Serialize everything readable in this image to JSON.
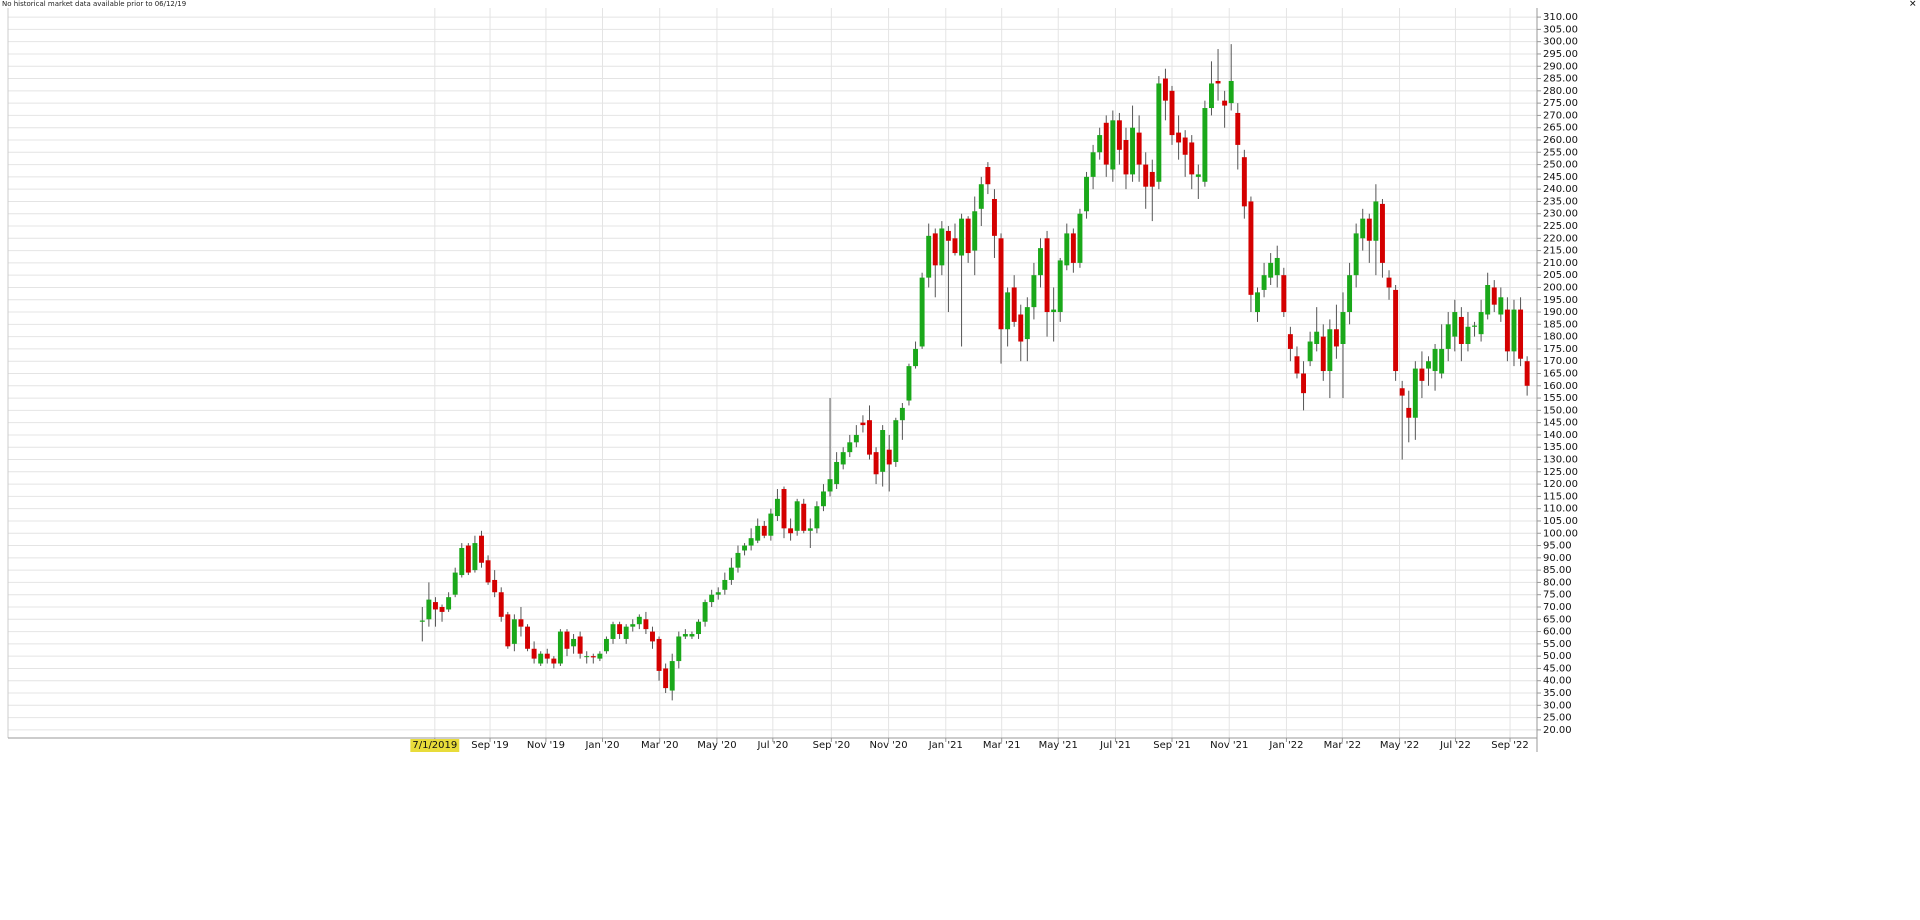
{
  "chart_data": {
    "type": "candlestick",
    "annotation": "No historical market data available prior to 06/12/19",
    "up_color": "#1aa81a",
    "down_color": "#d40000",
    "grid": true,
    "xlim": [
      -63,
      169.5
    ],
    "ylim": [
      16.7,
      313.7
    ],
    "xticks": [
      {
        "value": 1.9,
        "label": "7/1/2019"
      },
      {
        "value": 10.3,
        "label": "Sep '19"
      },
      {
        "value": 18.8,
        "label": "Nov '19"
      },
      {
        "value": 27.4,
        "label": "Jan '20"
      },
      {
        "value": 36.1,
        "label": "Mar '20"
      },
      {
        "value": 44.8,
        "label": "May '20"
      },
      {
        "value": 53.3,
        "label": "Jul '20"
      },
      {
        "value": 62.2,
        "label": "Sep '20"
      },
      {
        "value": 70.9,
        "label": "Nov '20"
      },
      {
        "value": 79.6,
        "label": "Jan '21"
      },
      {
        "value": 88.1,
        "label": "Mar '21"
      },
      {
        "value": 96.7,
        "label": "May '21"
      },
      {
        "value": 105.4,
        "label": "Jul '21"
      },
      {
        "value": 114.0,
        "label": "Sep '21"
      },
      {
        "value": 122.7,
        "label": "Nov '21"
      },
      {
        "value": 131.4,
        "label": "Jan '22"
      },
      {
        "value": 139.9,
        "label": "Mar '22"
      },
      {
        "value": 148.6,
        "label": "May '22"
      },
      {
        "value": 157.1,
        "label": "Jul '22"
      },
      {
        "value": 165.4,
        "label": "Sep '22"
      }
    ],
    "yticks": [
      {
        "value": 20,
        "label": "20.00"
      },
      {
        "value": 25,
        "label": "25.00"
      },
      {
        "value": 30,
        "label": "30.00"
      },
      {
        "value": 35,
        "label": "35.00"
      },
      {
        "value": 40,
        "label": "40.00"
      },
      {
        "value": 45,
        "label": "45.00"
      },
      {
        "value": 50,
        "label": "50.00"
      },
      {
        "value": 55,
        "label": "55.00"
      },
      {
        "value": 60,
        "label": "60.00"
      },
      {
        "value": 65,
        "label": "65.00"
      },
      {
        "value": 70,
        "label": "70.00"
      },
      {
        "value": 75,
        "label": "75.00"
      },
      {
        "value": 80,
        "label": "80.00"
      },
      {
        "value": 85,
        "label": "85.00"
      },
      {
        "value": 90,
        "label": "90.00"
      },
      {
        "value": 95,
        "label": "95.00"
      },
      {
        "value": 100,
        "label": "100.00"
      },
      {
        "value": 105,
        "label": "105.00"
      },
      {
        "value": 110,
        "label": "110.00"
      },
      {
        "value": 115,
        "label": "115.00"
      },
      {
        "value": 120,
        "label": "120.00"
      },
      {
        "value": 125,
        "label": "125.00"
      },
      {
        "value": 130,
        "label": "130.00"
      },
      {
        "value": 135,
        "label": "135.00"
      },
      {
        "value": 140,
        "label": "140.00"
      },
      {
        "value": 145,
        "label": "145.00"
      },
      {
        "value": 150,
        "label": "150.00"
      },
      {
        "value": 155,
        "label": "155.00"
      },
      {
        "value": 160,
        "label": "160.00"
      },
      {
        "value": 165,
        "label": "165.00"
      },
      {
        "value": 170,
        "label": "170.00"
      },
      {
        "value": 175,
        "label": "175.00"
      },
      {
        "value": 180,
        "label": "180.00"
      },
      {
        "value": 185,
        "label": "185.00"
      },
      {
        "value": 190,
        "label": "190.00"
      },
      {
        "value": 195,
        "label": "195.00"
      },
      {
        "value": 200,
        "label": "200.00"
      },
      {
        "value": 205,
        "label": "205.00"
      },
      {
        "value": 210,
        "label": "210.00"
      },
      {
        "value": 215,
        "label": "215.00"
      },
      {
        "value": 220,
        "label": "220.00"
      },
      {
        "value": 225,
        "label": "225.00"
      },
      {
        "value": 230,
        "label": "230.00"
      },
      {
        "value": 235,
        "label": "235.00"
      },
      {
        "value": 240,
        "label": "240.00"
      },
      {
        "value": 245,
        "label": "245.00"
      },
      {
        "value": 250,
        "label": "250.00"
      },
      {
        "value": 255,
        "label": "255.00"
      },
      {
        "value": 260,
        "label": "260.00"
      },
      {
        "value": 265,
        "label": "265.00"
      },
      {
        "value": 270,
        "label": "270.00"
      },
      {
        "value": 275,
        "label": "275.00"
      },
      {
        "value": 280,
        "label": "280.00"
      },
      {
        "value": 285,
        "label": "285.00"
      },
      {
        "value": 290,
        "label": "290.00"
      },
      {
        "value": 295,
        "label": "295.00"
      },
      {
        "value": 300,
        "label": "300.00"
      },
      {
        "value": 305,
        "label": "305.00"
      },
      {
        "value": 310,
        "label": "310.00"
      }
    ],
    "open": [
      64,
      65,
      72,
      70,
      69,
      75,
      83,
      95,
      85,
      99,
      89,
      81,
      76,
      67,
      55,
      65,
      62,
      53,
      47,
      51,
      49,
      47,
      60,
      54,
      58,
      50,
      50,
      49,
      52,
      57,
      63,
      57,
      62,
      63,
      65,
      60,
      57,
      45,
      36,
      48,
      58,
      58,
      59,
      64,
      72,
      75,
      77,
      81,
      86,
      93,
      95,
      97,
      103,
      99,
      107,
      118,
      102,
      101,
      112,
      101,
      102,
      111,
      117,
      120,
      128,
      133,
      137,
      145,
      146,
      133,
      125,
      134,
      129,
      146,
      154,
      168,
      176,
      204,
      222,
      209,
      223,
      220,
      213,
      228,
      215,
      232,
      249,
      236,
      220,
      183,
      200,
      189,
      179,
      192,
      205,
      220,
      190,
      190,
      209,
      222,
      210,
      231,
      245,
      255,
      267,
      248,
      268,
      260,
      246,
      263,
      250,
      247,
      243,
      285,
      280,
      263,
      261,
      259,
      245,
      243,
      273,
      284,
      276,
      275,
      271,
      253,
      235,
      190,
      199,
      204,
      205,
      205,
      181,
      172,
      165,
      170,
      177,
      180,
      166,
      183,
      177,
      190,
      205,
      220,
      228,
      219,
      234,
      204,
      199,
      159,
      151,
      147,
      167,
      167,
      166,
      165,
      175,
      180,
      188,
      177,
      184,
      181,
      189,
      200,
      189,
      191,
      174,
      191,
      170
    ],
    "high": [
      70,
      80,
      74,
      71,
      76,
      86,
      96,
      96,
      99,
      101,
      91,
      85,
      78,
      68,
      67,
      70,
      63,
      56,
      52,
      53,
      50,
      61,
      61,
      59,
      60,
      52,
      51,
      52,
      58,
      64,
      64,
      63,
      65,
      67,
      68,
      62,
      58,
      47,
      51,
      60,
      61,
      60,
      65,
      73,
      77,
      78,
      84,
      90,
      95,
      96,
      102,
      106,
      105,
      110,
      118,
      119,
      106,
      114,
      114,
      106,
      113,
      120,
      155,
      133,
      135,
      140,
      144,
      148,
      152,
      135,
      144,
      140,
      147,
      153,
      169,
      178,
      206,
      226,
      224,
      227,
      225,
      226,
      230,
      229,
      237,
      245,
      251,
      240,
      222,
      200,
      205,
      193,
      196,
      210,
      220,
      223,
      200,
      212,
      226,
      224,
      232,
      247,
      258,
      265,
      270,
      272,
      271,
      265,
      274,
      270,
      255,
      252,
      286,
      289,
      282,
      270,
      264,
      262,
      250,
      276,
      292,
      297,
      280,
      299,
      275,
      256,
      237,
      200,
      210,
      214,
      217,
      208,
      184,
      176,
      170,
      182,
      192,
      185,
      187,
      193,
      198,
      210,
      226,
      232,
      230,
      242,
      236,
      207,
      201,
      162,
      158,
      170,
      174,
      172,
      177,
      185,
      190,
      195,
      192,
      190,
      186,
      195,
      206,
      203,
      200,
      196,
      195,
      196,
      172
    ],
    "low": [
      56,
      62,
      62,
      64,
      68,
      74,
      82,
      83,
      84,
      86,
      79,
      74,
      64,
      53,
      52,
      58,
      52,
      47,
      46,
      47,
      45,
      46,
      50,
      51,
      49,
      47,
      47,
      48,
      51,
      55,
      57,
      55,
      60,
      61,
      59,
      53,
      40,
      35,
      32,
      45,
      57,
      57,
      57,
      62,
      70,
      73,
      75,
      79,
      84,
      91,
      93,
      96,
      98,
      97,
      105,
      98,
      97,
      99,
      100,
      94,
      100,
      109,
      115,
      118,
      126,
      131,
      135,
      141,
      130,
      120,
      119,
      117,
      127,
      138,
      152,
      167,
      175,
      200,
      196,
      205,
      190,
      213,
      176,
      210,
      205,
      225,
      238,
      212,
      169,
      176,
      184,
      170,
      170,
      187,
      200,
      180,
      178,
      186,
      207,
      206,
      208,
      228,
      240,
      252,
      245,
      243,
      250,
      240,
      243,
      243,
      232,
      227,
      240,
      268,
      258,
      252,
      245,
      240,
      236,
      241,
      270,
      276,
      265,
      272,
      248,
      228,
      190,
      186,
      196,
      201,
      200,
      188,
      170,
      163,
      150,
      168,
      174,
      162,
      155,
      171,
      155,
      185,
      200,
      215,
      210,
      205,
      204,
      195,
      162,
      130,
      137,
      138,
      155,
      160,
      158,
      163,
      170,
      174,
      170,
      174,
      180,
      178,
      187,
      190,
      186,
      170,
      168,
      168,
      156
    ],
    "close": [
      64.5,
      73,
      69,
      68,
      74,
      84,
      94,
      84,
      96,
      88,
      80,
      76,
      66,
      54,
      65,
      62,
      53,
      49,
      51,
      49,
      47,
      60,
      53,
      57,
      51,
      50,
      49.5,
      51,
      57,
      63,
      59,
      62,
      63,
      66,
      61,
      56,
      44,
      37,
      48,
      58,
      59,
      59,
      64,
      72,
      75,
      76,
      81,
      86,
      92,
      95,
      98,
      103,
      99,
      108,
      114,
      102,
      100,
      113,
      101,
      102,
      111,
      117,
      122,
      129,
      133,
      137,
      140,
      144,
      132,
      124,
      142,
      128,
      146,
      151,
      168,
      175,
      204,
      221,
      209,
      224,
      219,
      214,
      228,
      214,
      231,
      242,
      242,
      221,
      183,
      198,
      186,
      178,
      192,
      205,
      216,
      190,
      191,
      211,
      222,
      210,
      230,
      245,
      255,
      262,
      250,
      268,
      256,
      246,
      265,
      250,
      241,
      241,
      283,
      276,
      262,
      259,
      254,
      246,
      246,
      273,
      283,
      283,
      274,
      284,
      258,
      233,
      197,
      198,
      205,
      210,
      212,
      190,
      175,
      165,
      157,
      178,
      182,
      166,
      183,
      176,
      190,
      205,
      222,
      228,
      219,
      235,
      210,
      200,
      166,
      156,
      147,
      167,
      162,
      170,
      175,
      175,
      185,
      190,
      177,
      184,
      184.5,
      190,
      201,
      193,
      196,
      174,
      191,
      171,
      160
    ]
  }
}
